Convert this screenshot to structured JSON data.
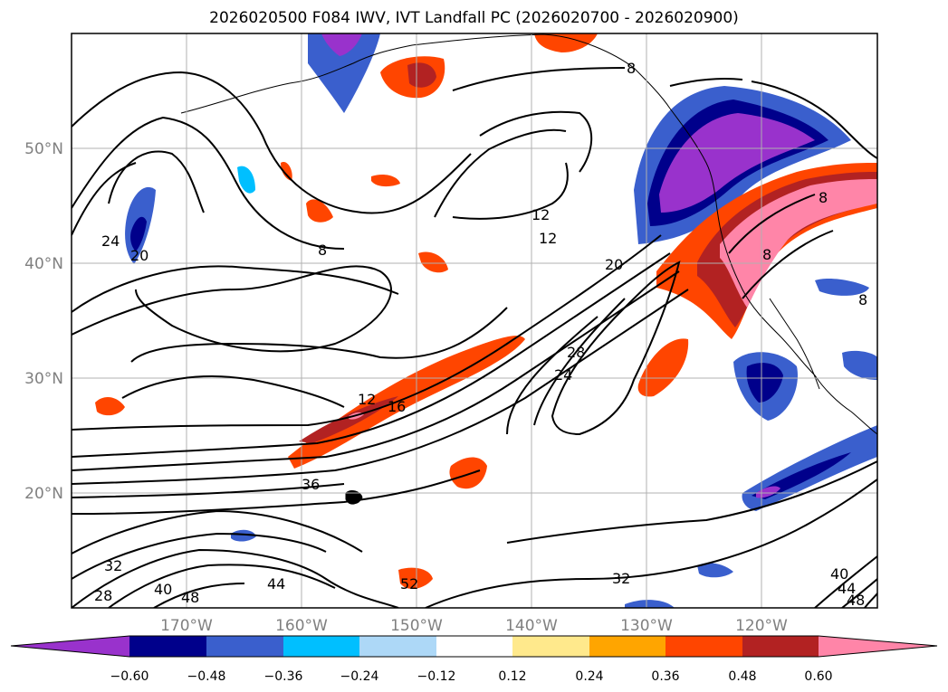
{
  "title": "2026020500 F084 IWV, IVT Landfall PC (2026020700 - 2026020900)",
  "map": {
    "lat_labels": [
      "50°N",
      "40°N",
      "30°N",
      "20°N"
    ],
    "lon_labels": [
      "170°W",
      "160°W",
      "150°W",
      "140°W",
      "130°W",
      "120°W"
    ],
    "contour_labels": [
      "24",
      "20",
      "8",
      "12",
      "12",
      "20",
      "28",
      "24",
      "16",
      "12",
      "36",
      "32",
      "28",
      "40",
      "48",
      "44",
      "52",
      "32",
      "40",
      "44",
      "48",
      "8",
      "8",
      "8",
      "8"
    ],
    "contour_color": "#000000",
    "grid_color": "#b0b0b0"
  },
  "colorbar": {
    "ticks": [
      "−0.60",
      "−0.48",
      "−0.36",
      "−0.24",
      "−0.12",
      "0.12",
      "0.24",
      "0.36",
      "0.48",
      "0.60"
    ],
    "colors": [
      "#9932cc",
      "#00008b",
      "#3a5fcd",
      "#00bfff",
      "#add8f7",
      "#ffffff",
      "#ffe98c",
      "#ffa500",
      "#ff4500",
      "#b22222",
      "#ff85a8"
    ]
  }
}
